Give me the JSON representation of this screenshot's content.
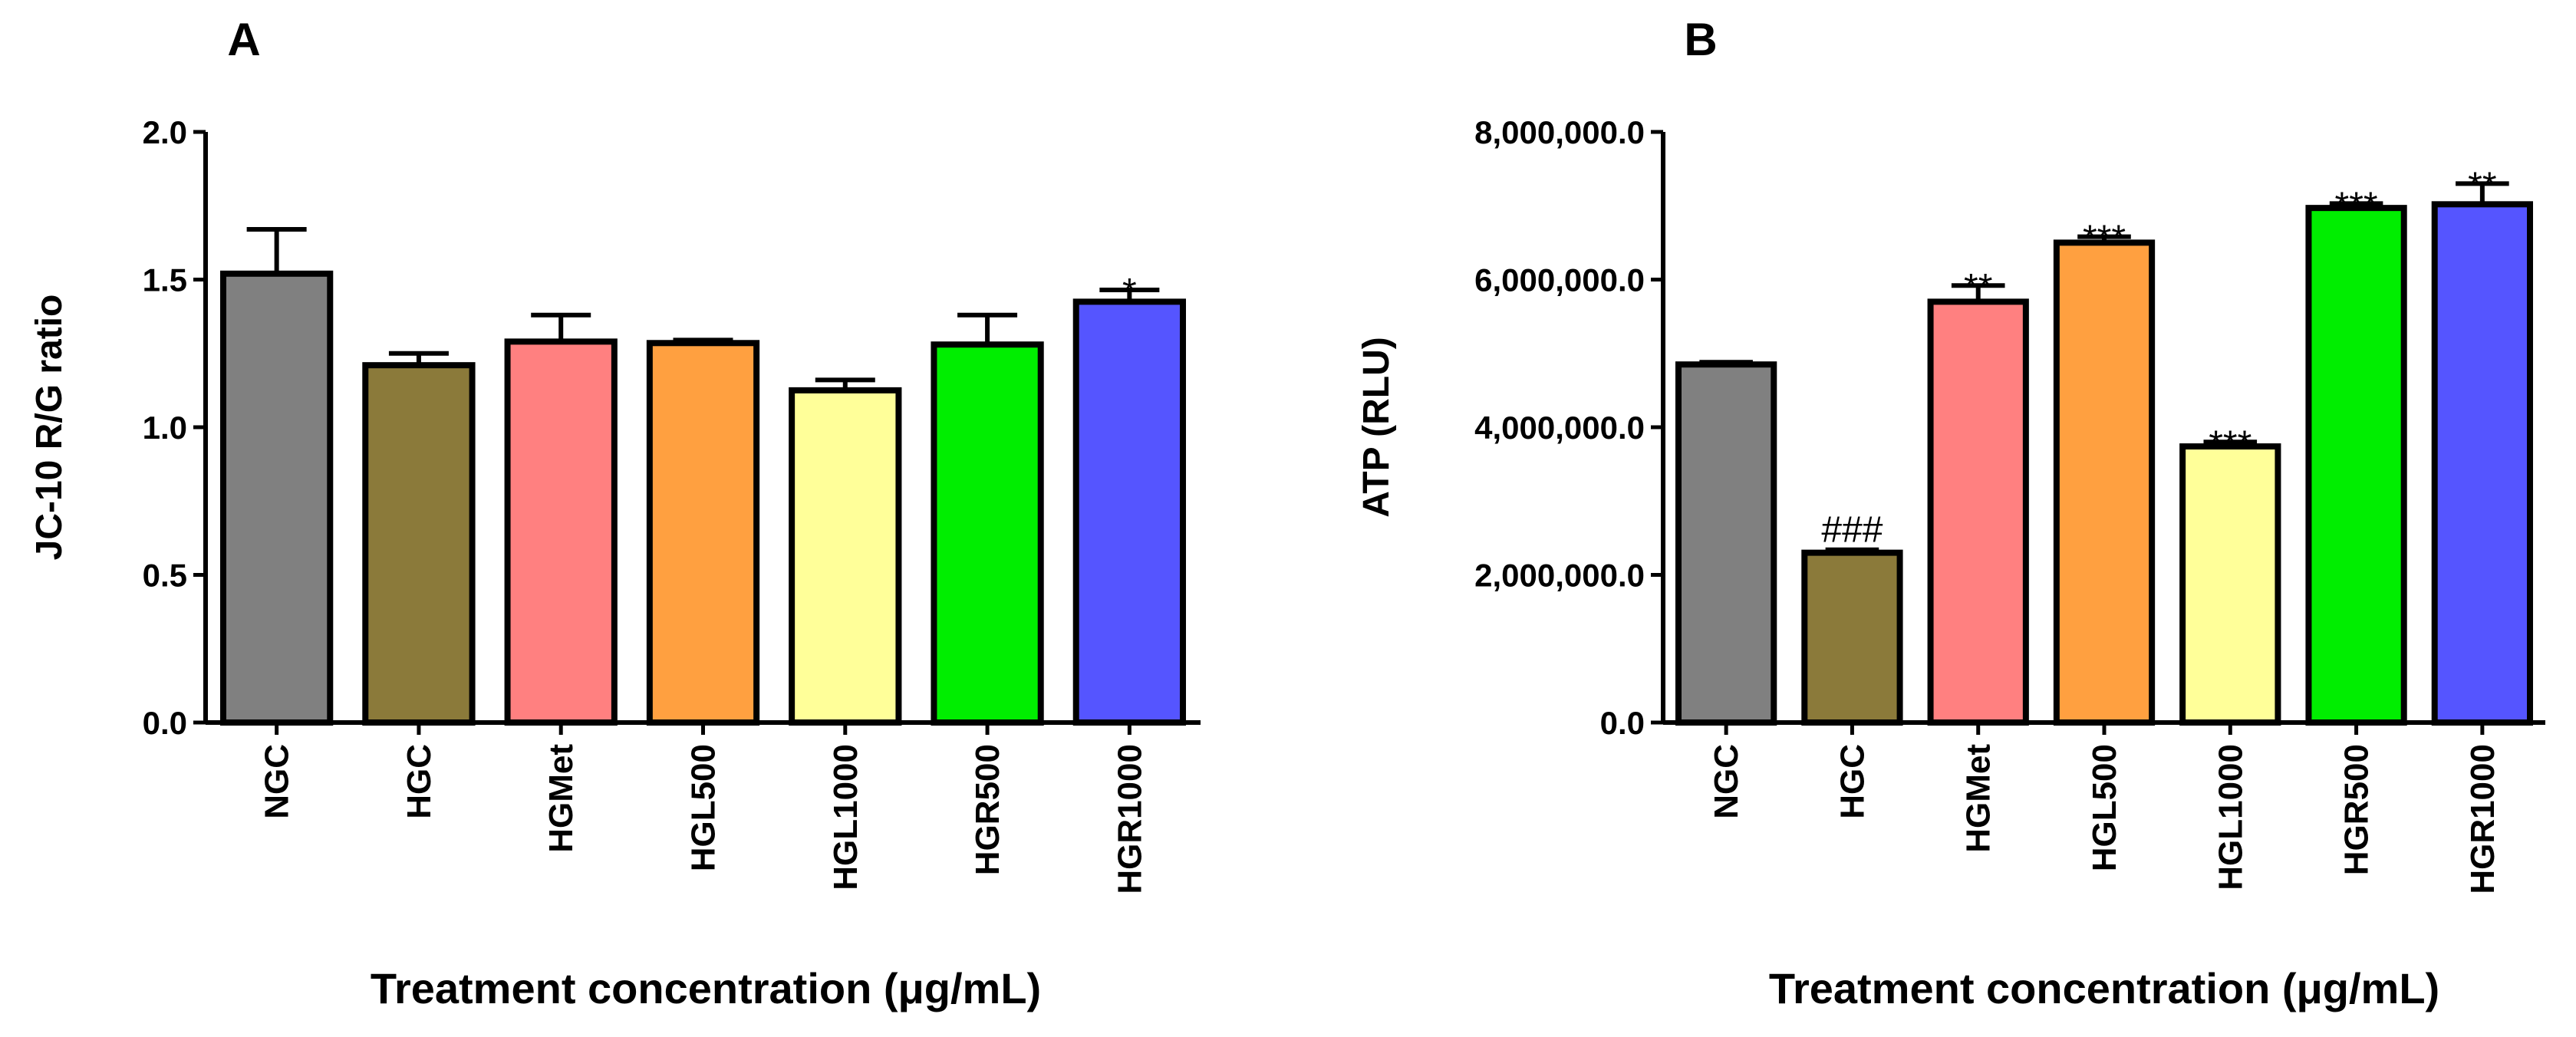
{
  "chart_data": [
    {
      "type": "bar",
      "panel": "A",
      "title": "",
      "ylabel": "JC-10 R/G ratio",
      "xlabel": "Treatment concentration (μg/mL)",
      "ylim": [
        0,
        2.0
      ],
      "yticks": [
        0.0,
        0.5,
        1.0,
        1.5,
        2.0
      ],
      "ytick_labels": [
        "0.0",
        "0.5",
        "1.0",
        "1.5",
        "2.0"
      ],
      "categories": [
        "NGC",
        "HGC",
        "HGMet",
        "HGL500",
        "HGL1000",
        "HGR500",
        "HGR1000"
      ],
      "values": [
        1.52,
        1.21,
        1.29,
        1.285,
        1.125,
        1.28,
        1.425
      ],
      "errors": [
        0.15,
        0.04,
        0.09,
        0.01,
        0.035,
        0.1,
        0.04
      ],
      "colors": [
        "#808080",
        "#8b7a3a",
        "#ff8080",
        "#ffa040",
        "#ffff99",
        "#00ee00",
        "#5555ff"
      ],
      "annotations": [
        "",
        "",
        "",
        "",
        "",
        "",
        "*"
      ]
    },
    {
      "type": "bar",
      "panel": "B",
      "title": "",
      "ylabel": "ATP (RLU)",
      "xlabel": "Treatment concentration (μg/mL)",
      "ylim": [
        0,
        8000000
      ],
      "yticks": [
        0,
        2000000,
        4000000,
        6000000,
        8000000
      ],
      "ytick_labels": [
        "0.0",
        "2,000,000.0",
        "4,000,000.0",
        "6,000,000.0",
        "8,000,000.0"
      ],
      "categories": [
        "NGC",
        "HGC",
        "HGMet",
        "HGL500",
        "HGL1000",
        "HGR500",
        "HGR1000"
      ],
      "values": [
        4850000,
        2300000,
        5700000,
        6500000,
        3740000,
        6970000,
        7020000
      ],
      "errors": [
        30000,
        40000,
        220000,
        80000,
        60000,
        60000,
        280000
      ],
      "colors": [
        "#808080",
        "#8b7a3a",
        "#ff8080",
        "#ffa040",
        "#ffff99",
        "#00ee00",
        "#5555ff"
      ],
      "annotations": [
        "",
        "###",
        "**",
        "***",
        "***",
        "***",
        "**"
      ]
    }
  ]
}
